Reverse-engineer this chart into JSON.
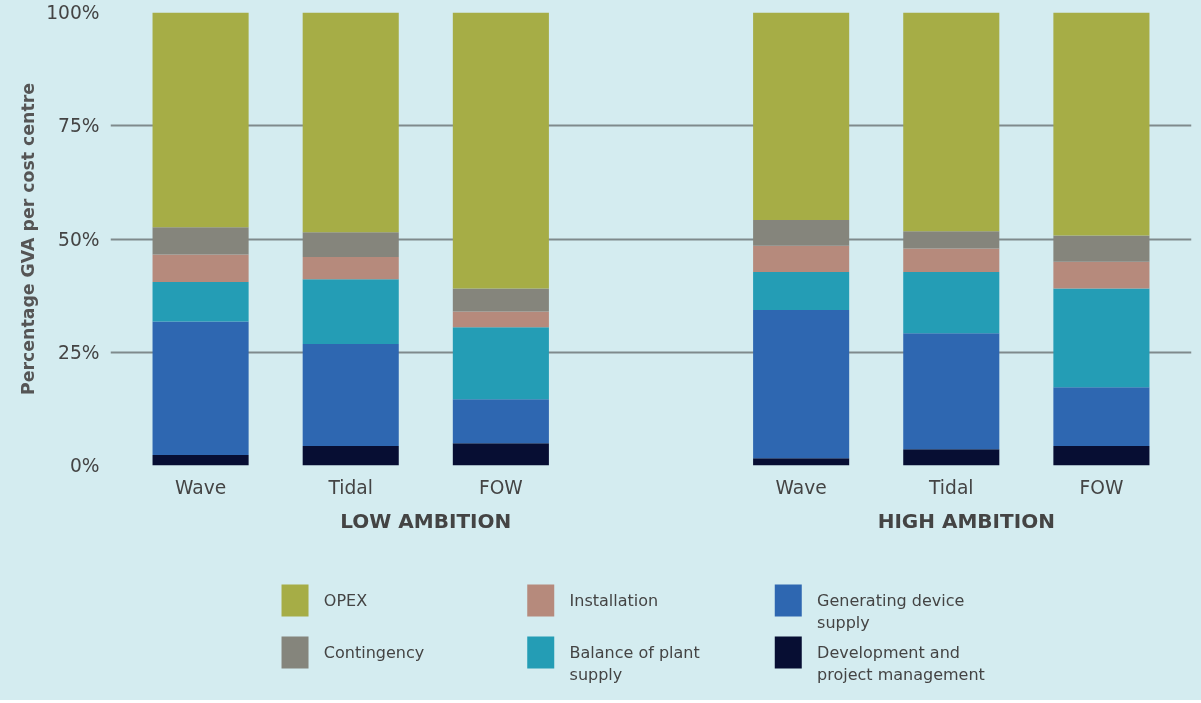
{
  "chart_data": {
    "type": "bar",
    "stacked": true,
    "ylabel": "Percentage GVA per cost centre",
    "categories": [
      "Wave",
      "Tidal",
      "FOW",
      null,
      "Wave",
      "Tidal",
      "FOW"
    ],
    "series": [
      {
        "name": "Development and project management",
        "color": "#070e33",
        "values": [
          2.3,
          4.3,
          4.9,
          null,
          1.6,
          3.6,
          4.3
        ]
      },
      {
        "name": "Generating device supply",
        "color": "#2e67b1",
        "values": [
          29.5,
          22.5,
          9.7,
          null,
          32.7,
          25.6,
          13.0
        ]
      },
      {
        "name": "Balance of plant supply",
        "color": "#249db5",
        "values": [
          8.7,
          14.3,
          15.9,
          null,
          8.4,
          13.5,
          21.8
        ]
      },
      {
        "name": "Installation",
        "color": "#b68a7c",
        "values": [
          6.1,
          4.9,
          3.5,
          null,
          5.8,
          5.2,
          5.9
        ]
      },
      {
        "name": "Contingency",
        "color": "#85857c",
        "values": [
          6.0,
          5.5,
          5.1,
          null,
          5.7,
          3.8,
          5.8
        ]
      },
      {
        "name": "OPEX",
        "color": "#a6ad46",
        "values": [
          47.4,
          48.5,
          60.9,
          null,
          45.8,
          48.3,
          49.2
        ]
      }
    ],
    "ylim": [
      0,
      100
    ],
    "yticks": [
      {
        "value": 0,
        "label": "0%"
      },
      {
        "value": 25,
        "label": "25%"
      },
      {
        "value": 50,
        "label": "50%"
      },
      {
        "value": 75,
        "label": "75%"
      },
      {
        "value": 100,
        "label": "100%"
      }
    ],
    "grid": "y",
    "legend": "bottom",
    "annotations": [
      "LOW AMBITION",
      "HIGH AMBITION"
    ]
  }
}
